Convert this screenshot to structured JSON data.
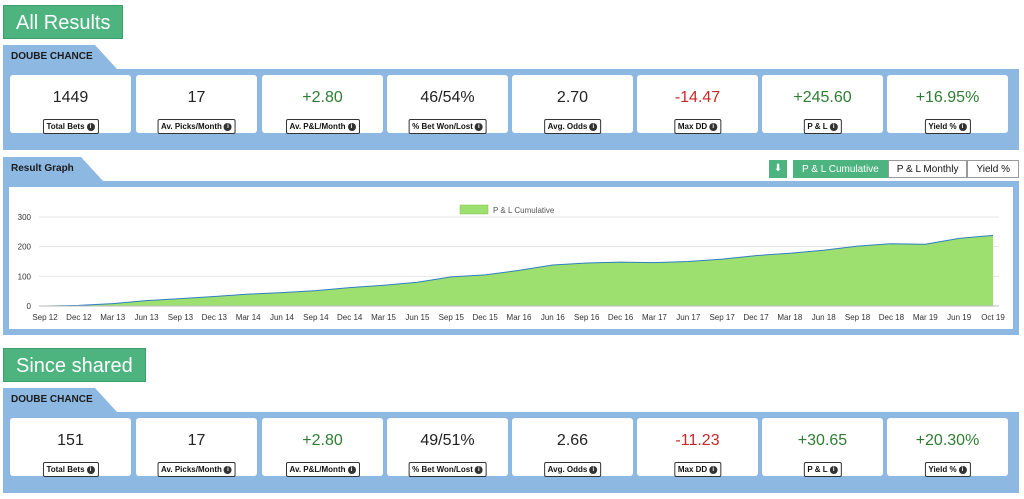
{
  "all_results": {
    "title": "All Results",
    "ribbon": "DOUBE CHANCE",
    "stats": [
      {
        "value": "1449",
        "label": "Total Bets",
        "tone": "neutral"
      },
      {
        "value": "17",
        "label": "Av. Picks/Month",
        "tone": "neutral"
      },
      {
        "value": "+2.80",
        "label": "Av. P&L/Month",
        "tone": "pos"
      },
      {
        "value": "46/54%",
        "label": "% Bet Won/Lost",
        "tone": "neutral"
      },
      {
        "value": "2.70",
        "label": "Avg. Odds",
        "tone": "neutral"
      },
      {
        "value": "-14.47",
        "label": "Max DD",
        "tone": "neg"
      },
      {
        "value": "+245.60",
        "label": "P & L",
        "tone": "pos"
      },
      {
        "value": "+16.95%",
        "label": "Yield %",
        "tone": "pos"
      }
    ]
  },
  "graph": {
    "ribbon": "Result Graph",
    "tabs": [
      "P & L Cumulative",
      "P & L Monthly",
      "Yield %"
    ],
    "active_tab": 0,
    "download_icon": "download-icon"
  },
  "chart_data": {
    "type": "area",
    "legend": "P & L Cumulative",
    "legend_placement": "top-center",
    "grid": true,
    "ylim": [
      0,
      300
    ],
    "yticks": [
      "0",
      "100",
      "200",
      "300"
    ],
    "xticks": [
      "Sep 12",
      "Dec 12",
      "Mar 13",
      "Jun 13",
      "Sep 13",
      "Dec 13",
      "Mar 14",
      "Jun 14",
      "Sep 14",
      "Dec 14",
      "Mar 15",
      "Jun 15",
      "Sep 15",
      "Dec 15",
      "Mar 16",
      "Jun 16",
      "Sep 16",
      "Dec 16",
      "Mar 17",
      "Jun 17",
      "Sep 17",
      "Dec 17",
      "Mar 18",
      "Jun 18",
      "Sep 18",
      "Dec 18",
      "Mar 19",
      "Jun 19",
      "Oct 19"
    ],
    "values": [
      0,
      2,
      8,
      18,
      25,
      32,
      40,
      45,
      52,
      62,
      70,
      80,
      98,
      105,
      120,
      138,
      145,
      148,
      146,
      150,
      158,
      170,
      178,
      188,
      202,
      210,
      208,
      228,
      238
    ],
    "fill_color": "#9ee06f",
    "line_color": "#2e7fbf"
  },
  "since_shared": {
    "title": "Since shared",
    "ribbon": "DOUBE CHANCE",
    "stats": [
      {
        "value": "151",
        "label": "Total Bets",
        "tone": "neutral"
      },
      {
        "value": "17",
        "label": "Av. Picks/Month",
        "tone": "neutral"
      },
      {
        "value": "+2.80",
        "label": "Av. P&L/Month",
        "tone": "pos"
      },
      {
        "value": "49/51%",
        "label": "% Bet Won/Lost",
        "tone": "neutral"
      },
      {
        "value": "2.66",
        "label": "Avg. Odds",
        "tone": "neutral"
      },
      {
        "value": "-11.23",
        "label": "Max DD",
        "tone": "neg"
      },
      {
        "value": "+30.65",
        "label": "P & L",
        "tone": "pos"
      },
      {
        "value": "+20.30%",
        "label": "Yield %",
        "tone": "pos"
      }
    ]
  }
}
